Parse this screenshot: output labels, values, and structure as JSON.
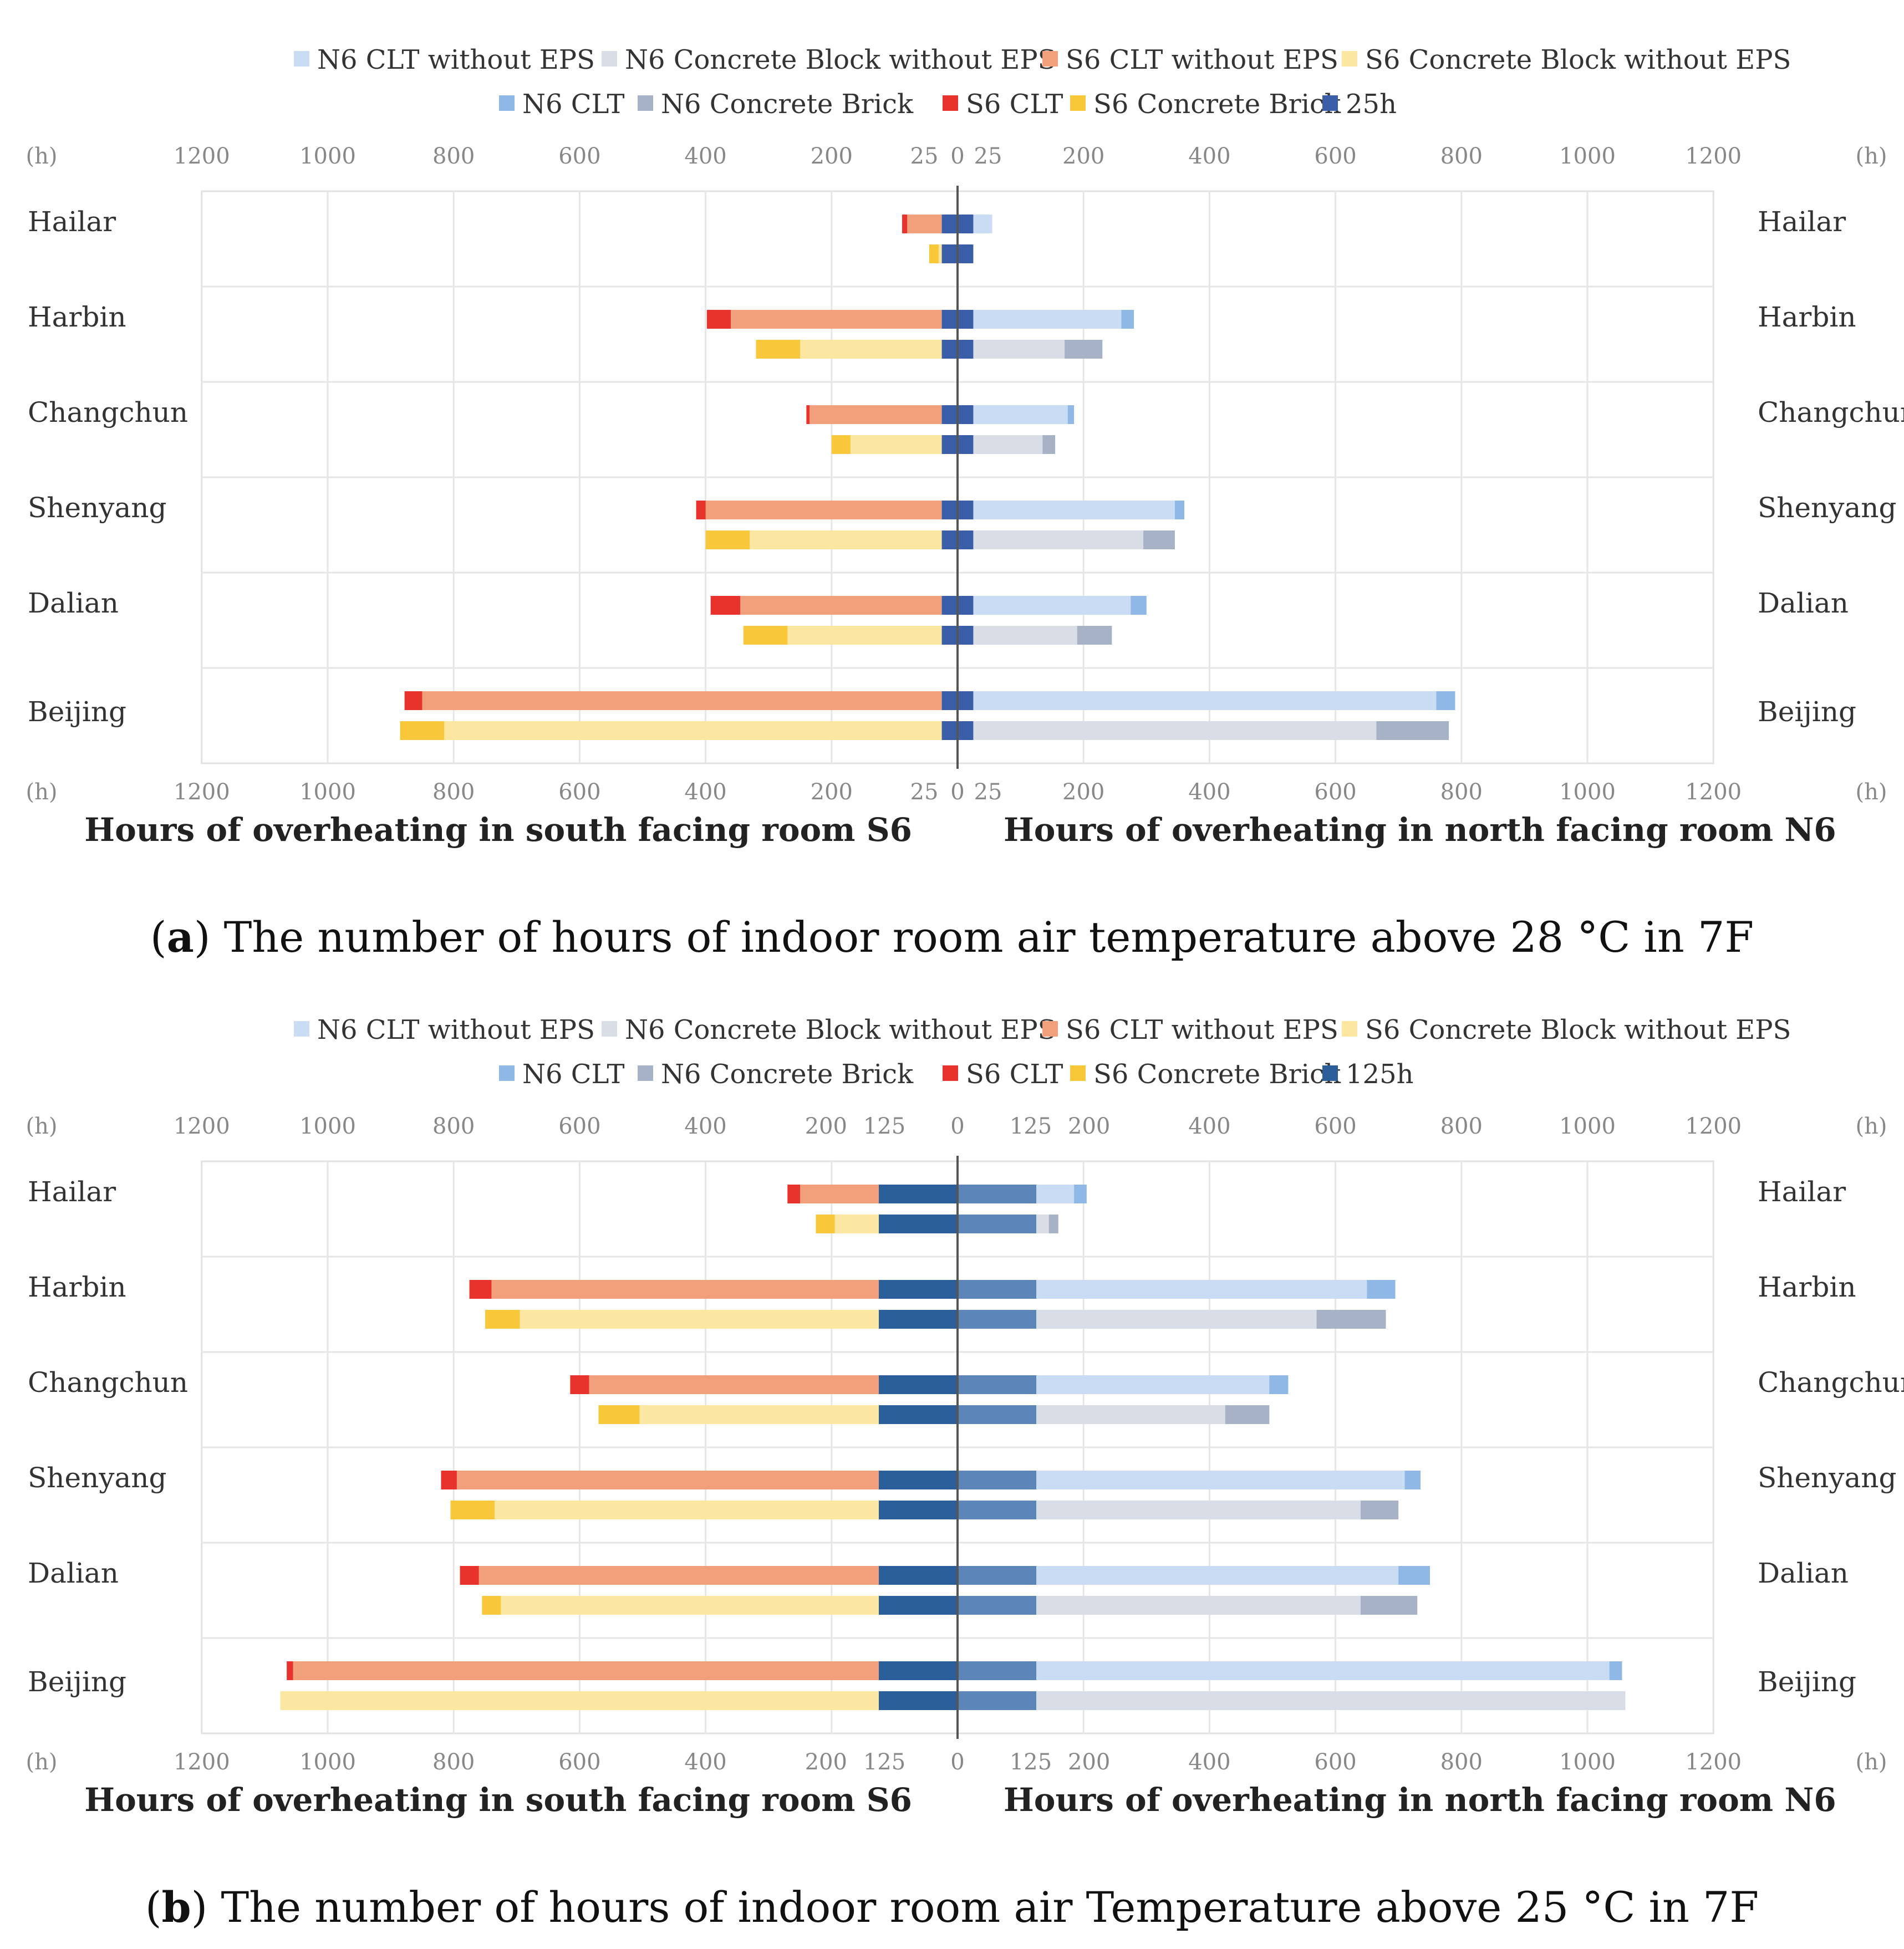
{
  "colors": {
    "N6 CLT without EPS": "#c9dcf3",
    "N6 Concrete Block without EPS": "#d8dde6",
    "S6 CLT without EPS": "#f2a07c",
    "S6 Concrete Block without EPS": "#fbe7a2",
    "N6 CLT": "#8fb8e6",
    "N6 Concrete Brick": "#a7b2c6",
    "S6 CLT": "#e8332c",
    "S6 Concrete Brick": "#f8c83a",
    "25h": "#3a5ea8",
    "125h": "#2b5f9a",
    "125h_north": "#5c86b8"
  },
  "chart_data": [
    {
      "type": "bar",
      "panel": "a",
      "caption_letter": "a",
      "caption_rest": ") The number of hours of indoor room air temperature above 28 °C in 7F",
      "legend_row1": [
        "N6 CLT without EPS",
        "N6 Concrete Block without EPS",
        "S6 CLT without EPS",
        "S6 Concrete Block without EPS"
      ],
      "legend_row2": [
        "N6 CLT",
        "N6 Concrete Brick",
        "S6 CLT",
        "S6 Concrete Brick",
        "25h"
      ],
      "threshold": 25,
      "threshold_label": "25h",
      "unit_label": "(h)",
      "ticks": [
        "1200",
        "1000",
        "800",
        "600",
        "400",
        "200",
        "25",
        "0",
        "25",
        "200",
        "400",
        "600",
        "800",
        "1000",
        "1200"
      ],
      "xlim": [
        0,
        1200
      ],
      "xlabel_left": "Hours of overheating in south facing room S6",
      "xlabel_right": "Hours of overheating in north facing room N6",
      "categories": [
        "Hailar",
        "Harbin",
        "Changchun",
        "Shenyang",
        "Dalian",
        "Beijing"
      ],
      "series": [
        {
          "name": "S6 CLT without EPS",
          "side": "south",
          "values": [
            80,
            360,
            235,
            400,
            345,
            850
          ]
        },
        {
          "name": "S6 CLT",
          "side": "south",
          "values": [
            88,
            398,
            240,
            415,
            392,
            878
          ]
        },
        {
          "name": "S6 Concrete Block without EPS",
          "side": "south",
          "values": [
            30,
            250,
            170,
            330,
            270,
            815
          ]
        },
        {
          "name": "S6 Concrete Brick",
          "side": "south",
          "values": [
            45,
            320,
            200,
            400,
            340,
            885
          ]
        },
        {
          "name": "N6 CLT without EPS",
          "side": "north",
          "values": [
            55,
            260,
            175,
            345,
            275,
            760
          ]
        },
        {
          "name": "N6 CLT",
          "side": "north",
          "values": [
            55,
            280,
            185,
            360,
            300,
            790
          ]
        },
        {
          "name": "N6 Concrete Block without EPS",
          "side": "north",
          "values": [
            25,
            170,
            135,
            295,
            190,
            665
          ]
        },
        {
          "name": "N6 Concrete Brick",
          "side": "north",
          "values": [
            25,
            230,
            155,
            345,
            245,
            780
          ]
        }
      ]
    },
    {
      "type": "bar",
      "panel": "b",
      "caption_letter": "b",
      "caption_rest": ") The number of hours of indoor room air Temperature above 25 °C in 7F",
      "legend_row1": [
        "N6 CLT without EPS",
        "N6 Concrete Block without EPS",
        "S6 CLT without EPS",
        "S6 Concrete Block without EPS"
      ],
      "legend_row2": [
        "N6 CLT",
        "N6 Concrete Brick",
        "S6 CLT",
        "S6 Concrete Brick",
        "125h"
      ],
      "threshold": 125,
      "threshold_label": "125h",
      "unit_label": "(h)",
      "ticks": [
        "1200",
        "1000",
        "800",
        "600",
        "400",
        "200",
        "125",
        "0",
        "125",
        "200",
        "400",
        "600",
        "800",
        "1000",
        "1200"
      ],
      "xlim": [
        0,
        1200
      ],
      "xlabel_left": "Hours of overheating in south facing room S6",
      "xlabel_right": "Hours of overheating in north facing room N6",
      "categories": [
        "Hailar",
        "Harbin",
        "Changchun",
        "Shenyang",
        "Dalian",
        "Beijing"
      ],
      "series": [
        {
          "name": "S6 CLT without EPS",
          "side": "south",
          "values": [
            250,
            740,
            585,
            795,
            760,
            1055
          ]
        },
        {
          "name": "S6 CLT",
          "side": "south",
          "values": [
            270,
            775,
            615,
            820,
            790,
            1065
          ]
        },
        {
          "name": "S6 Concrete Block without EPS",
          "side": "south",
          "values": [
            195,
            695,
            505,
            735,
            725,
            1075
          ]
        },
        {
          "name": "S6 Concrete Brick",
          "side": "south",
          "values": [
            225,
            750,
            570,
            805,
            755,
            1075
          ]
        },
        {
          "name": "N6 CLT without EPS",
          "side": "north",
          "values": [
            185,
            650,
            495,
            710,
            700,
            1035
          ]
        },
        {
          "name": "N6 CLT",
          "side": "north",
          "values": [
            205,
            695,
            525,
            735,
            750,
            1055
          ]
        },
        {
          "name": "N6 Concrete Block without EPS",
          "side": "north",
          "values": [
            145,
            570,
            425,
            640,
            640,
            1060
          ]
        },
        {
          "name": "N6 Concrete Brick",
          "side": "north",
          "values": [
            160,
            680,
            495,
            700,
            730,
            1060
          ]
        }
      ]
    }
  ]
}
